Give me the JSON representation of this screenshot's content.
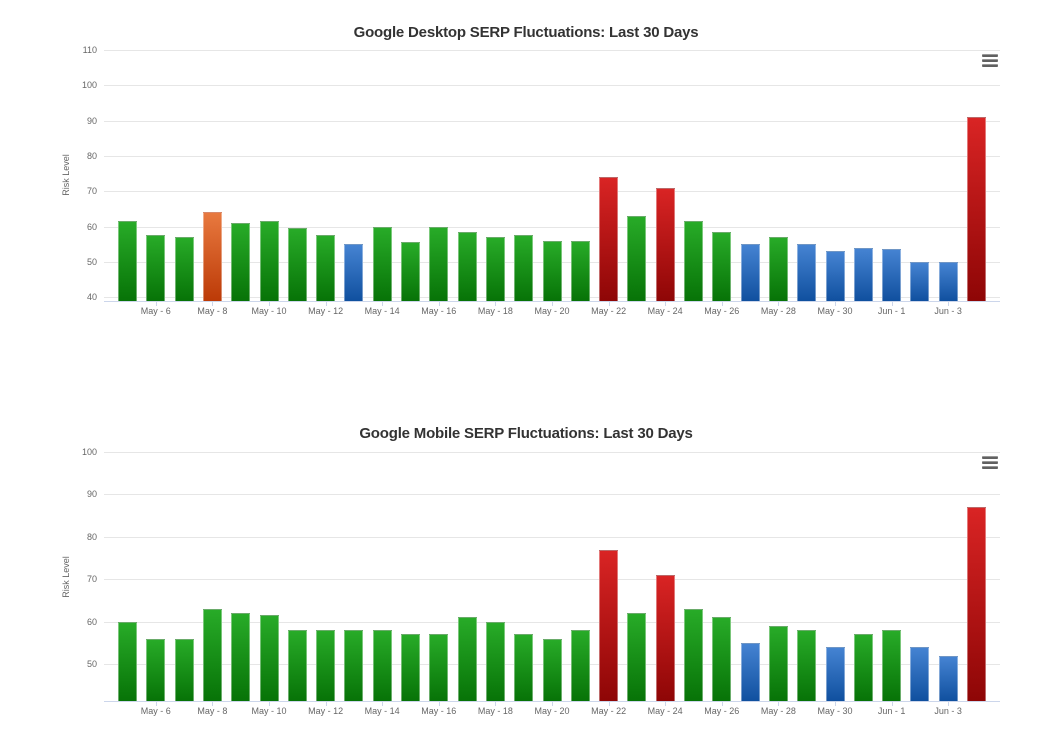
{
  "page": {
    "background": "#ffffff"
  },
  "palette": {
    "green_top": "#28ab28",
    "green_bottom": "#077307",
    "orange_top": "#e8793f",
    "orange_bottom": "#bc3a07",
    "blue_top": "#4583d2",
    "blue_bottom": "#10509f",
    "red_top": "#d92424",
    "red_bottom": "#8e0606",
    "grid_line": "#e6e6e6",
    "axis_line": "#ccd6eb",
    "tick_label": "#666666",
    "title_text": "#333333",
    "menu_icon": "#616161"
  },
  "export_menu": {
    "icon": "hamburger-menu-icon"
  },
  "chart_data": [
    {
      "type": "bar",
      "title": "Google Desktop SERP Fluctuations: Last 30 Days",
      "xlabel": "",
      "ylabel": "Risk Level",
      "ylim": [
        38.9,
        110
      ],
      "y_ticks": [
        110,
        100,
        90,
        80,
        70,
        60,
        50,
        40
      ],
      "grid": true,
      "legend": false,
      "categories": [
        "May - 5",
        "May - 6",
        "May - 7",
        "May - 8",
        "May - 9",
        "May - 10",
        "May - 11",
        "May - 12",
        "May - 13",
        "May - 14",
        "May - 15",
        "May - 16",
        "May - 17",
        "May - 18",
        "May - 19",
        "May - 20",
        "May - 21",
        "May - 22",
        "May - 23",
        "May - 24",
        "May - 25",
        "May - 26",
        "May - 27",
        "May - 28",
        "May - 29",
        "May - 30",
        "May - 31",
        "Jun - 1",
        "Jun - 2",
        "Jun - 3",
        "Jun - 4"
      ],
      "x_labels_shown": [
        "May - 6",
        "May - 8",
        "May - 10",
        "May - 12",
        "May - 14",
        "May - 16",
        "May - 18",
        "May - 20",
        "May - 22",
        "May - 24",
        "May - 26",
        "May - 28",
        "May - 30",
        "Jun - 1",
        "Jun - 3"
      ],
      "values": [
        61.5,
        57.5,
        57,
        64,
        61,
        61.5,
        59.5,
        57.5,
        55,
        60,
        55.5,
        60,
        58.5,
        57,
        57.5,
        56,
        56,
        74,
        63,
        71,
        61.5,
        58.5,
        55,
        57,
        55,
        53,
        54,
        53.5,
        50,
        50,
        91
      ],
      "point_colors": [
        "green",
        "green",
        "green",
        "orange",
        "green",
        "green",
        "green",
        "green",
        "blue",
        "green",
        "green",
        "green",
        "green",
        "green",
        "green",
        "green",
        "green",
        "red",
        "green",
        "red",
        "green",
        "green",
        "blue",
        "green",
        "blue",
        "blue",
        "blue",
        "blue",
        "blue",
        "blue",
        "red"
      ]
    },
    {
      "type": "bar",
      "title": "Google Mobile SERP Fluctuations: Last 30 Days",
      "xlabel": "",
      "ylabel": "Risk Level",
      "ylim": [
        41.3,
        100
      ],
      "y_ticks": [
        100,
        90,
        80,
        70,
        60,
        50
      ],
      "grid": true,
      "legend": false,
      "categories": [
        "May - 5",
        "May - 6",
        "May - 7",
        "May - 8",
        "May - 9",
        "May - 10",
        "May - 11",
        "May - 12",
        "May - 13",
        "May - 14",
        "May - 15",
        "May - 16",
        "May - 17",
        "May - 18",
        "May - 19",
        "May - 20",
        "May - 21",
        "May - 22",
        "May - 23",
        "May - 24",
        "May - 25",
        "May - 26",
        "May - 27",
        "May - 28",
        "May - 29",
        "May - 30",
        "May - 31",
        "Jun - 1",
        "Jun - 2",
        "Jun - 3",
        "Jun - 4"
      ],
      "x_labels_shown": [
        "May - 6",
        "May - 8",
        "May - 10",
        "May - 12",
        "May - 14",
        "May - 16",
        "May - 18",
        "May - 20",
        "May - 22",
        "May - 24",
        "May - 26",
        "May - 28",
        "May - 30",
        "Jun - 1",
        "Jun - 3"
      ],
      "values": [
        60,
        56,
        56,
        63,
        62,
        61.5,
        58,
        58,
        58,
        58,
        57,
        57,
        61,
        60,
        57,
        56,
        58,
        77,
        62,
        71,
        63,
        61,
        55,
        59,
        58,
        54,
        57,
        58,
        54,
        52,
        87
      ],
      "point_colors": [
        "green",
        "green",
        "green",
        "green",
        "green",
        "green",
        "green",
        "green",
        "green",
        "green",
        "green",
        "green",
        "green",
        "green",
        "green",
        "green",
        "green",
        "red",
        "green",
        "red",
        "green",
        "green",
        "blue",
        "green",
        "green",
        "blue",
        "green",
        "green",
        "blue",
        "blue",
        "red"
      ]
    }
  ]
}
